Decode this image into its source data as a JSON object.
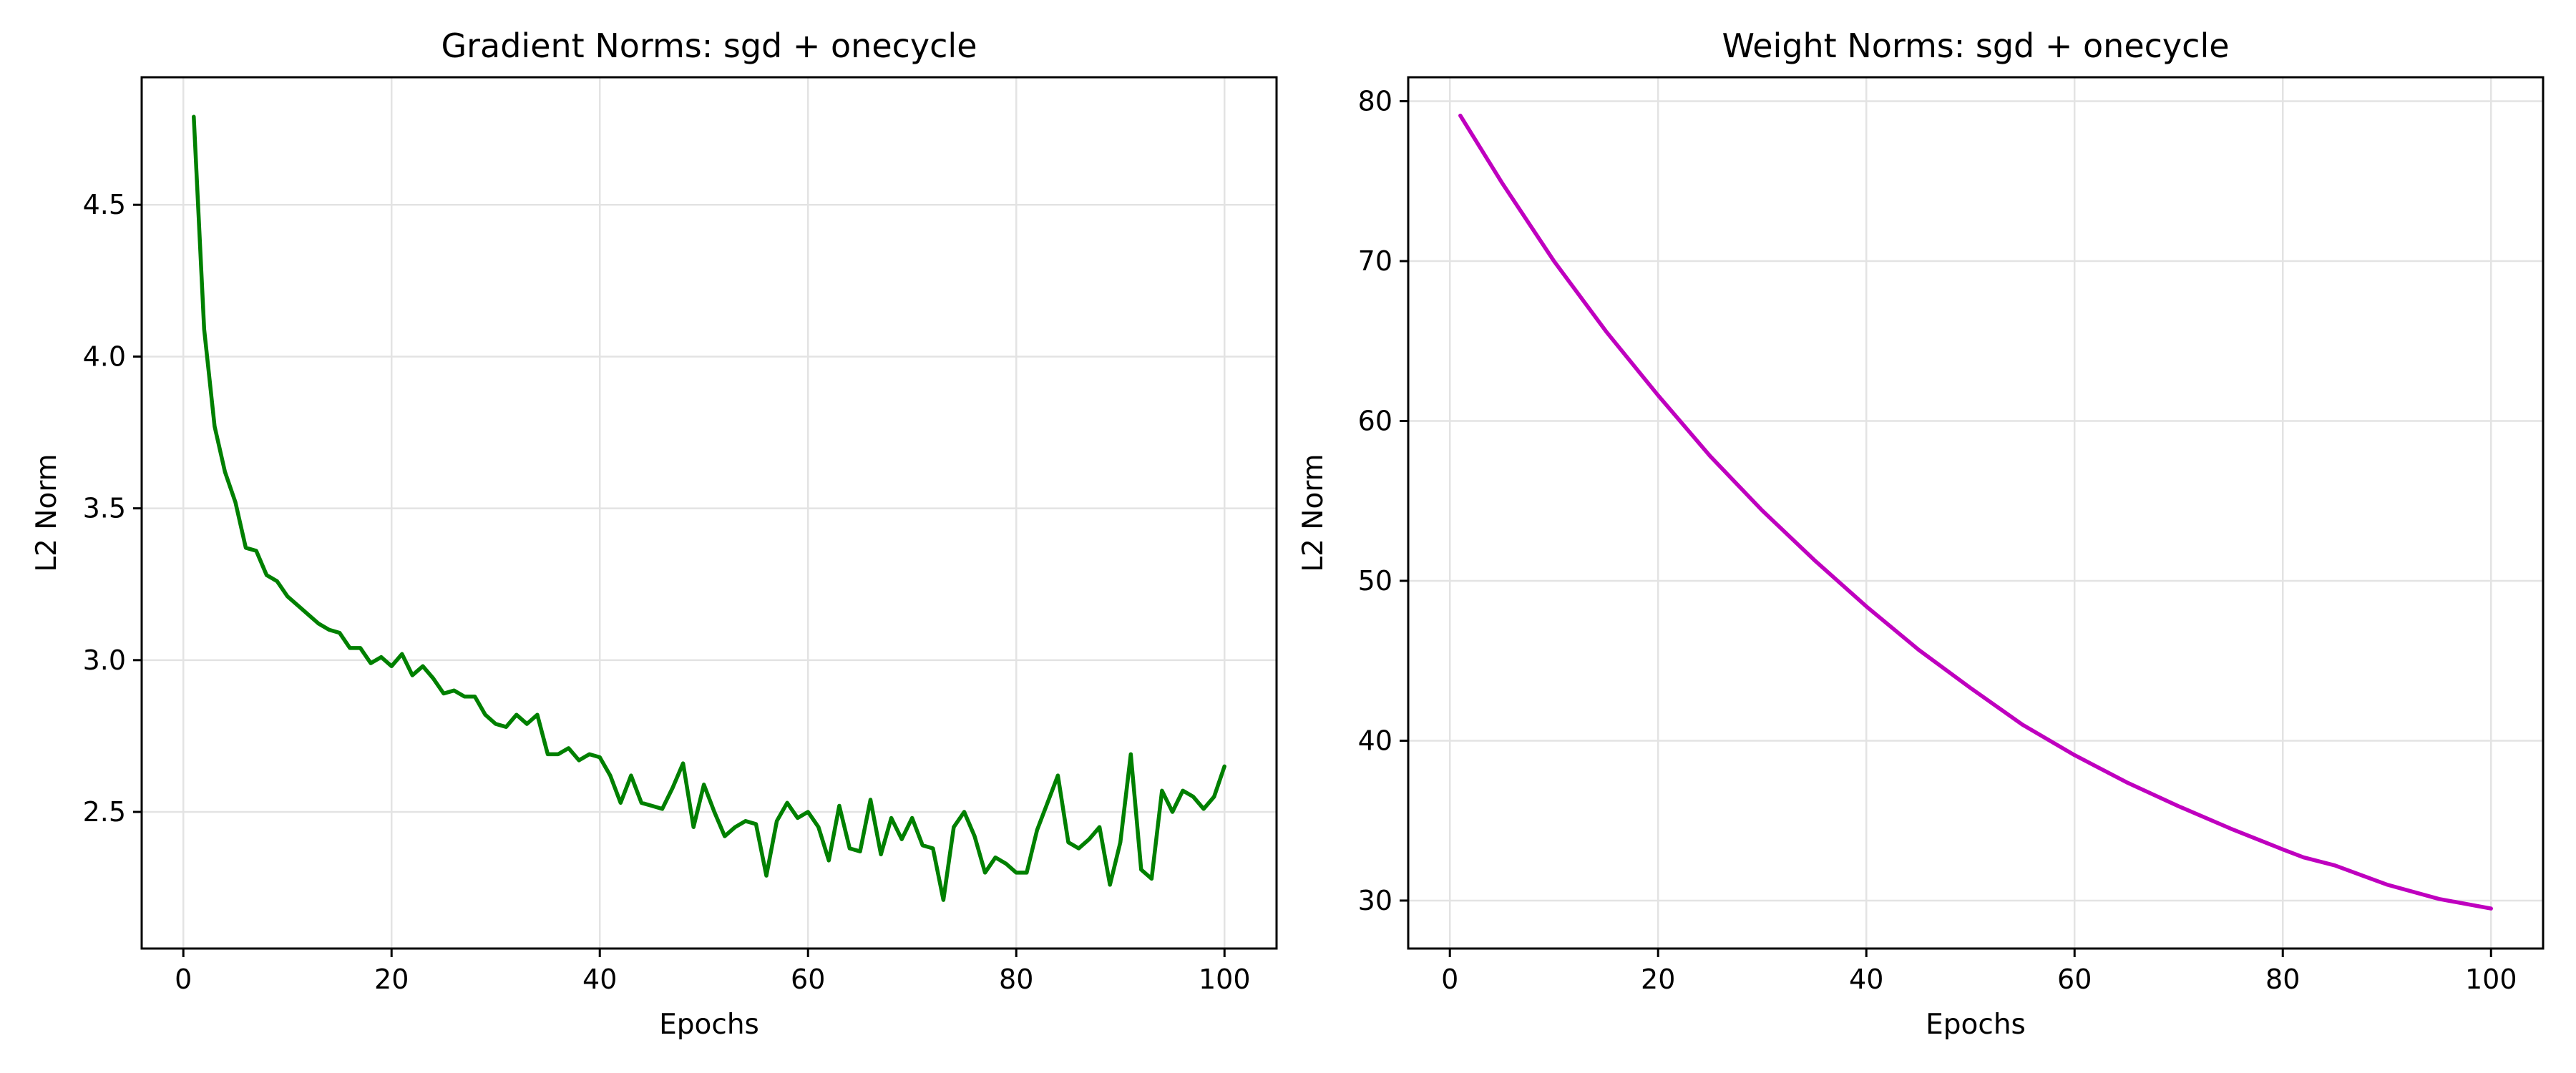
{
  "chart_data": [
    {
      "type": "line",
      "title": "Gradient Norms: sgd + onecycle",
      "xlabel": "Epochs",
      "ylabel": "L2 Norm",
      "xlim": [
        -4,
        105
      ],
      "ylim": [
        2.05,
        4.92
      ],
      "xticks": [
        0,
        20,
        40,
        60,
        80,
        100
      ],
      "yticks": [
        2.5,
        3.0,
        3.5,
        4.0,
        4.5
      ],
      "ytick_labels": [
        "2.5",
        "3.0",
        "3.5",
        "4.0",
        "4.5"
      ],
      "grid": true,
      "color": "#008000",
      "series": [
        {
          "x": [
            1,
            2,
            3,
            4,
            5,
            6,
            7,
            8,
            9,
            10,
            11,
            12,
            13,
            14,
            15,
            16,
            17,
            18,
            19,
            20,
            21,
            22,
            23,
            24,
            25,
            26,
            27,
            28,
            29,
            30,
            31,
            32,
            33,
            34,
            35,
            36,
            37,
            38,
            39,
            40,
            41,
            42,
            43,
            44,
            45,
            46,
            47,
            48,
            49,
            50,
            51,
            52,
            53,
            54,
            55,
            56,
            57,
            58,
            59,
            60,
            61,
            62,
            63,
            64,
            65,
            66,
            67,
            68,
            69,
            70,
            71,
            72,
            73,
            74,
            75,
            76,
            77,
            78,
            79,
            80,
            81,
            82,
            83,
            84,
            85,
            86,
            87,
            88,
            89,
            90,
            91,
            92,
            93,
            94,
            95,
            96,
            97,
            98,
            99,
            100
          ],
          "values": [
            4.79,
            4.09,
            3.77,
            3.62,
            3.52,
            3.37,
            3.36,
            3.28,
            3.26,
            3.21,
            3.18,
            3.15,
            3.12,
            3.1,
            3.09,
            3.04,
            3.04,
            2.99,
            3.01,
            2.98,
            3.02,
            2.95,
            2.98,
            2.94,
            2.89,
            2.9,
            2.88,
            2.88,
            2.82,
            2.79,
            2.78,
            2.82,
            2.79,
            2.82,
            2.69,
            2.69,
            2.71,
            2.67,
            2.69,
            2.68,
            2.62,
            2.53,
            2.62,
            2.53,
            2.52,
            2.51,
            2.58,
            2.66,
            2.45,
            2.59,
            2.5,
            2.42,
            2.45,
            2.47,
            2.46,
            2.29,
            2.47,
            2.53,
            2.48,
            2.5,
            2.45,
            2.34,
            2.52,
            2.38,
            2.37,
            2.54,
            2.36,
            2.48,
            2.41,
            2.48,
            2.39,
            2.38,
            2.21,
            2.45,
            2.5,
            2.42,
            2.3,
            2.35,
            2.33,
            2.3,
            2.3,
            2.44,
            2.53,
            2.62,
            2.4,
            2.38,
            2.41,
            2.45,
            2.26,
            2.4,
            2.69,
            2.31,
            2.28,
            2.57,
            2.5,
            2.57,
            2.55,
            2.51,
            2.55,
            2.65
          ]
        }
      ]
    },
    {
      "type": "line",
      "title": "Weight Norms: sgd + onecycle",
      "xlabel": "Epochs",
      "ylabel": "L2 Norm",
      "xlim": [
        -4,
        105
      ],
      "ylim": [
        27.0,
        81.5
      ],
      "xticks": [
        0,
        20,
        40,
        60,
        80,
        100
      ],
      "yticks": [
        30,
        40,
        50,
        60,
        70,
        80
      ],
      "ytick_labels": [
        "30",
        "40",
        "50",
        "60",
        "70",
        "80"
      ],
      "grid": true,
      "color": "#bf00bf",
      "series": [
        {
          "x": [
            1,
            5,
            10,
            15,
            20,
            25,
            30,
            35,
            40,
            45,
            50,
            55,
            60,
            65,
            70,
            75,
            80,
            82,
            85,
            90,
            95,
            100
          ],
          "values": [
            79.1,
            74.9,
            70.0,
            65.6,
            61.6,
            57.8,
            54.4,
            51.3,
            48.4,
            45.7,
            43.3,
            41.0,
            39.1,
            37.4,
            35.9,
            34.5,
            33.2,
            32.7,
            32.2,
            31.0,
            30.1,
            29.5
          ]
        }
      ]
    }
  ]
}
